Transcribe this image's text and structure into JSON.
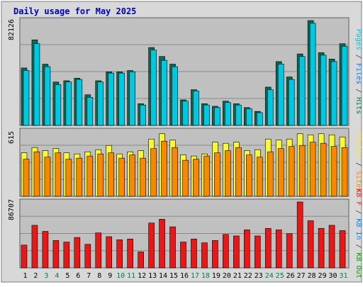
{
  "chart_data": {
    "type": "bar",
    "title": "Daily usage for May 2025",
    "categories": [
      "1",
      "2",
      "3",
      "4",
      "5",
      "6",
      "7",
      "8",
      "9",
      "10",
      "11",
      "12",
      "13",
      "14",
      "15",
      "16",
      "17",
      "18",
      "19",
      "20",
      "21",
      "22",
      "23",
      "24",
      "25",
      "26",
      "27",
      "28",
      "29",
      "30",
      "31"
    ],
    "weekend_days": [
      "3",
      "4",
      "10",
      "11",
      "17",
      "18",
      "24",
      "25",
      "31"
    ],
    "grid": true,
    "panels": [
      {
        "id": "hits-files-pages",
        "ymax_label": "82126",
        "ylim": [
          0,
          82126
        ],
        "legend_position": "right, rotated",
        "series": [
          {
            "name": "Hits",
            "color": "#006c5a",
            "values": [
              45000,
              67000,
              48000,
              34000,
              35000,
              37000,
              24000,
              35000,
              42000,
              42000,
              43000,
              17000,
              61000,
              54000,
              48000,
              20000,
              28000,
              17000,
              15000,
              19000,
              17000,
              14000,
              11000,
              30000,
              50000,
              38000,
              56000,
              82126,
              57000,
              52000,
              64000
            ]
          },
          {
            "name": "Files",
            "color": "#00c8e0",
            "values": [
              43000,
              64000,
              46000,
              32000,
              34000,
              36000,
              22000,
              34000,
              41000,
              41000,
              42000,
              16000,
              59000,
              51000,
              46000,
              19000,
              27000,
              16000,
              14000,
              18000,
              16000,
              13000,
              10000,
              28000,
              48000,
              36000,
              54000,
              80000,
              55000,
              50000,
              62000
            ]
          },
          {
            "name": "Pages",
            "color": "#00e8f8",
            "values": []
          }
        ]
      },
      {
        "id": "visits-sites",
        "ymax_label": "615",
        "ylim": [
          0,
          615
        ],
        "legend_position": "right, rotated",
        "series": [
          {
            "name": "Visits",
            "color": "#f8f838",
            "values": [
              410,
              460,
              430,
              450,
              410,
              400,
              420,
              440,
              480,
              400,
              420,
              430,
              540,
              590,
              530,
              390,
              380,
              400,
              510,
              500,
              510,
              430,
              440,
              540,
              530,
              540,
              590,
              580,
              590,
              580,
              560
            ]
          },
          {
            "name": "Sites",
            "color": "#f88800",
            "values": [
              350,
              420,
              370,
              410,
              350,
              360,
              380,
              400,
              410,
              360,
              390,
              360,
              450,
              520,
              460,
              340,
              350,
              380,
              410,
              430,
              460,
              390,
              370,
              420,
              450,
              470,
              480,
              510,
              500,
              470,
              460
            ]
          }
        ]
      },
      {
        "id": "kb",
        "ymax_label": "86707",
        "ylim": [
          0,
          86707
        ],
        "legend_position": "right, rotated",
        "series": [
          {
            "name": "KB F",
            "color": "#e81818",
            "values": [
              30000,
              56000,
              48000,
              36000,
              34000,
              40000,
              31000,
              46000,
              41000,
              37000,
              38000,
              21000,
              59000,
              64000,
              54000,
              34000,
              38000,
              33000,
              36000,
              44000,
              42000,
              50000,
              42000,
              52000,
              50000,
              45000,
              86707,
              62000,
              52000,
              56000,
              49000
            ]
          },
          {
            "name": "KB In",
            "color": "#0080ff",
            "values": []
          },
          {
            "name": "KB Out",
            "color": "#00a000",
            "values": []
          }
        ]
      }
    ]
  },
  "legend_labels": {
    "top": [
      {
        "text": "Pages",
        "color": "#00c8e0"
      },
      {
        "text": " / ",
        "color": "#404040"
      },
      {
        "text": "Files",
        "color": "#0080ff"
      },
      {
        "text": " / ",
        "color": "#404040"
      },
      {
        "text": "Hits",
        "color": "#00805a"
      }
    ],
    "middle": [
      {
        "text": "Visits",
        "color": "#f8e820"
      },
      {
        "text": " / ",
        "color": "#404040"
      },
      {
        "text": "Sites",
        "color": "#f88800"
      }
    ],
    "bottom": [
      {
        "text": "KB F",
        "color": "#e81818"
      },
      {
        "text": " / ",
        "color": "#404040"
      },
      {
        "text": "KB In",
        "color": "#0080ff"
      },
      {
        "text": " / ",
        "color": "#404040"
      },
      {
        "text": "KB Out",
        "color": "#00a000"
      }
    ]
  },
  "colors": {
    "panel_bg": "#c0c0c0",
    "frame_bg": "#d8d8d8",
    "title": "#0000c0",
    "weekday_label": "#000000",
    "weekend_label": "#00805a"
  }
}
